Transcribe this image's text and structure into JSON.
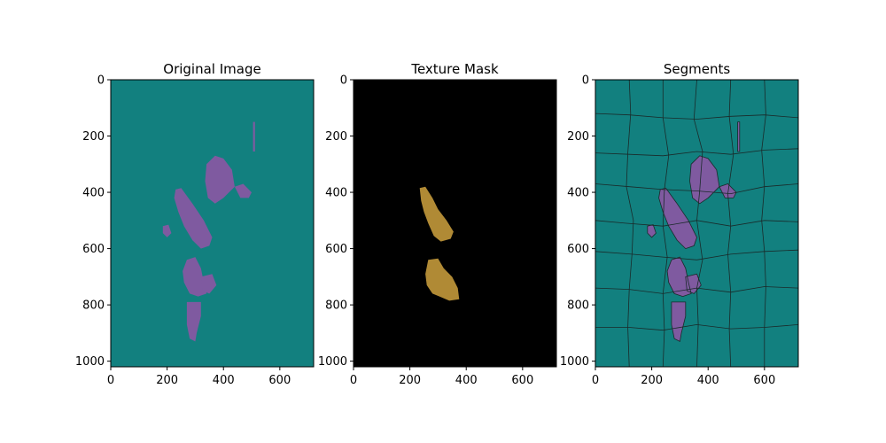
{
  "chart_data": [
    {
      "type": "image",
      "title": "Original Image",
      "xlabel": "",
      "ylabel": "",
      "xlim": [
        0,
        720
      ],
      "ylim": [
        1020,
        0
      ],
      "x_ticks": [
        0,
        200,
        400,
        600
      ],
      "y_ticks": [
        0,
        200,
        400,
        600,
        800,
        1000
      ],
      "background_color": "#12807f",
      "region_color": "#7f5aa0",
      "show_mask": false,
      "show_segments": false
    },
    {
      "type": "image",
      "title": "Texture Mask",
      "xlabel": "",
      "ylabel": "",
      "xlim": [
        0,
        720
      ],
      "ylim": [
        1020,
        0
      ],
      "x_ticks": [
        0,
        200,
        400,
        600
      ],
      "y_ticks": [
        0,
        200,
        400,
        600,
        800,
        1000
      ],
      "background_color": "#000000",
      "region_color": "#b08a35",
      "show_mask": true,
      "show_segments": false
    },
    {
      "type": "image",
      "title": "Segments",
      "xlabel": "",
      "ylabel": "",
      "xlim": [
        0,
        720
      ],
      "ylim": [
        1020,
        0
      ],
      "x_ticks": [
        0,
        200,
        400,
        600
      ],
      "y_ticks": [
        0,
        200,
        400,
        600,
        800,
        1000
      ],
      "background_color": "#12807f",
      "region_color": "#7f5aa0",
      "show_mask": false,
      "show_segments": true
    }
  ]
}
